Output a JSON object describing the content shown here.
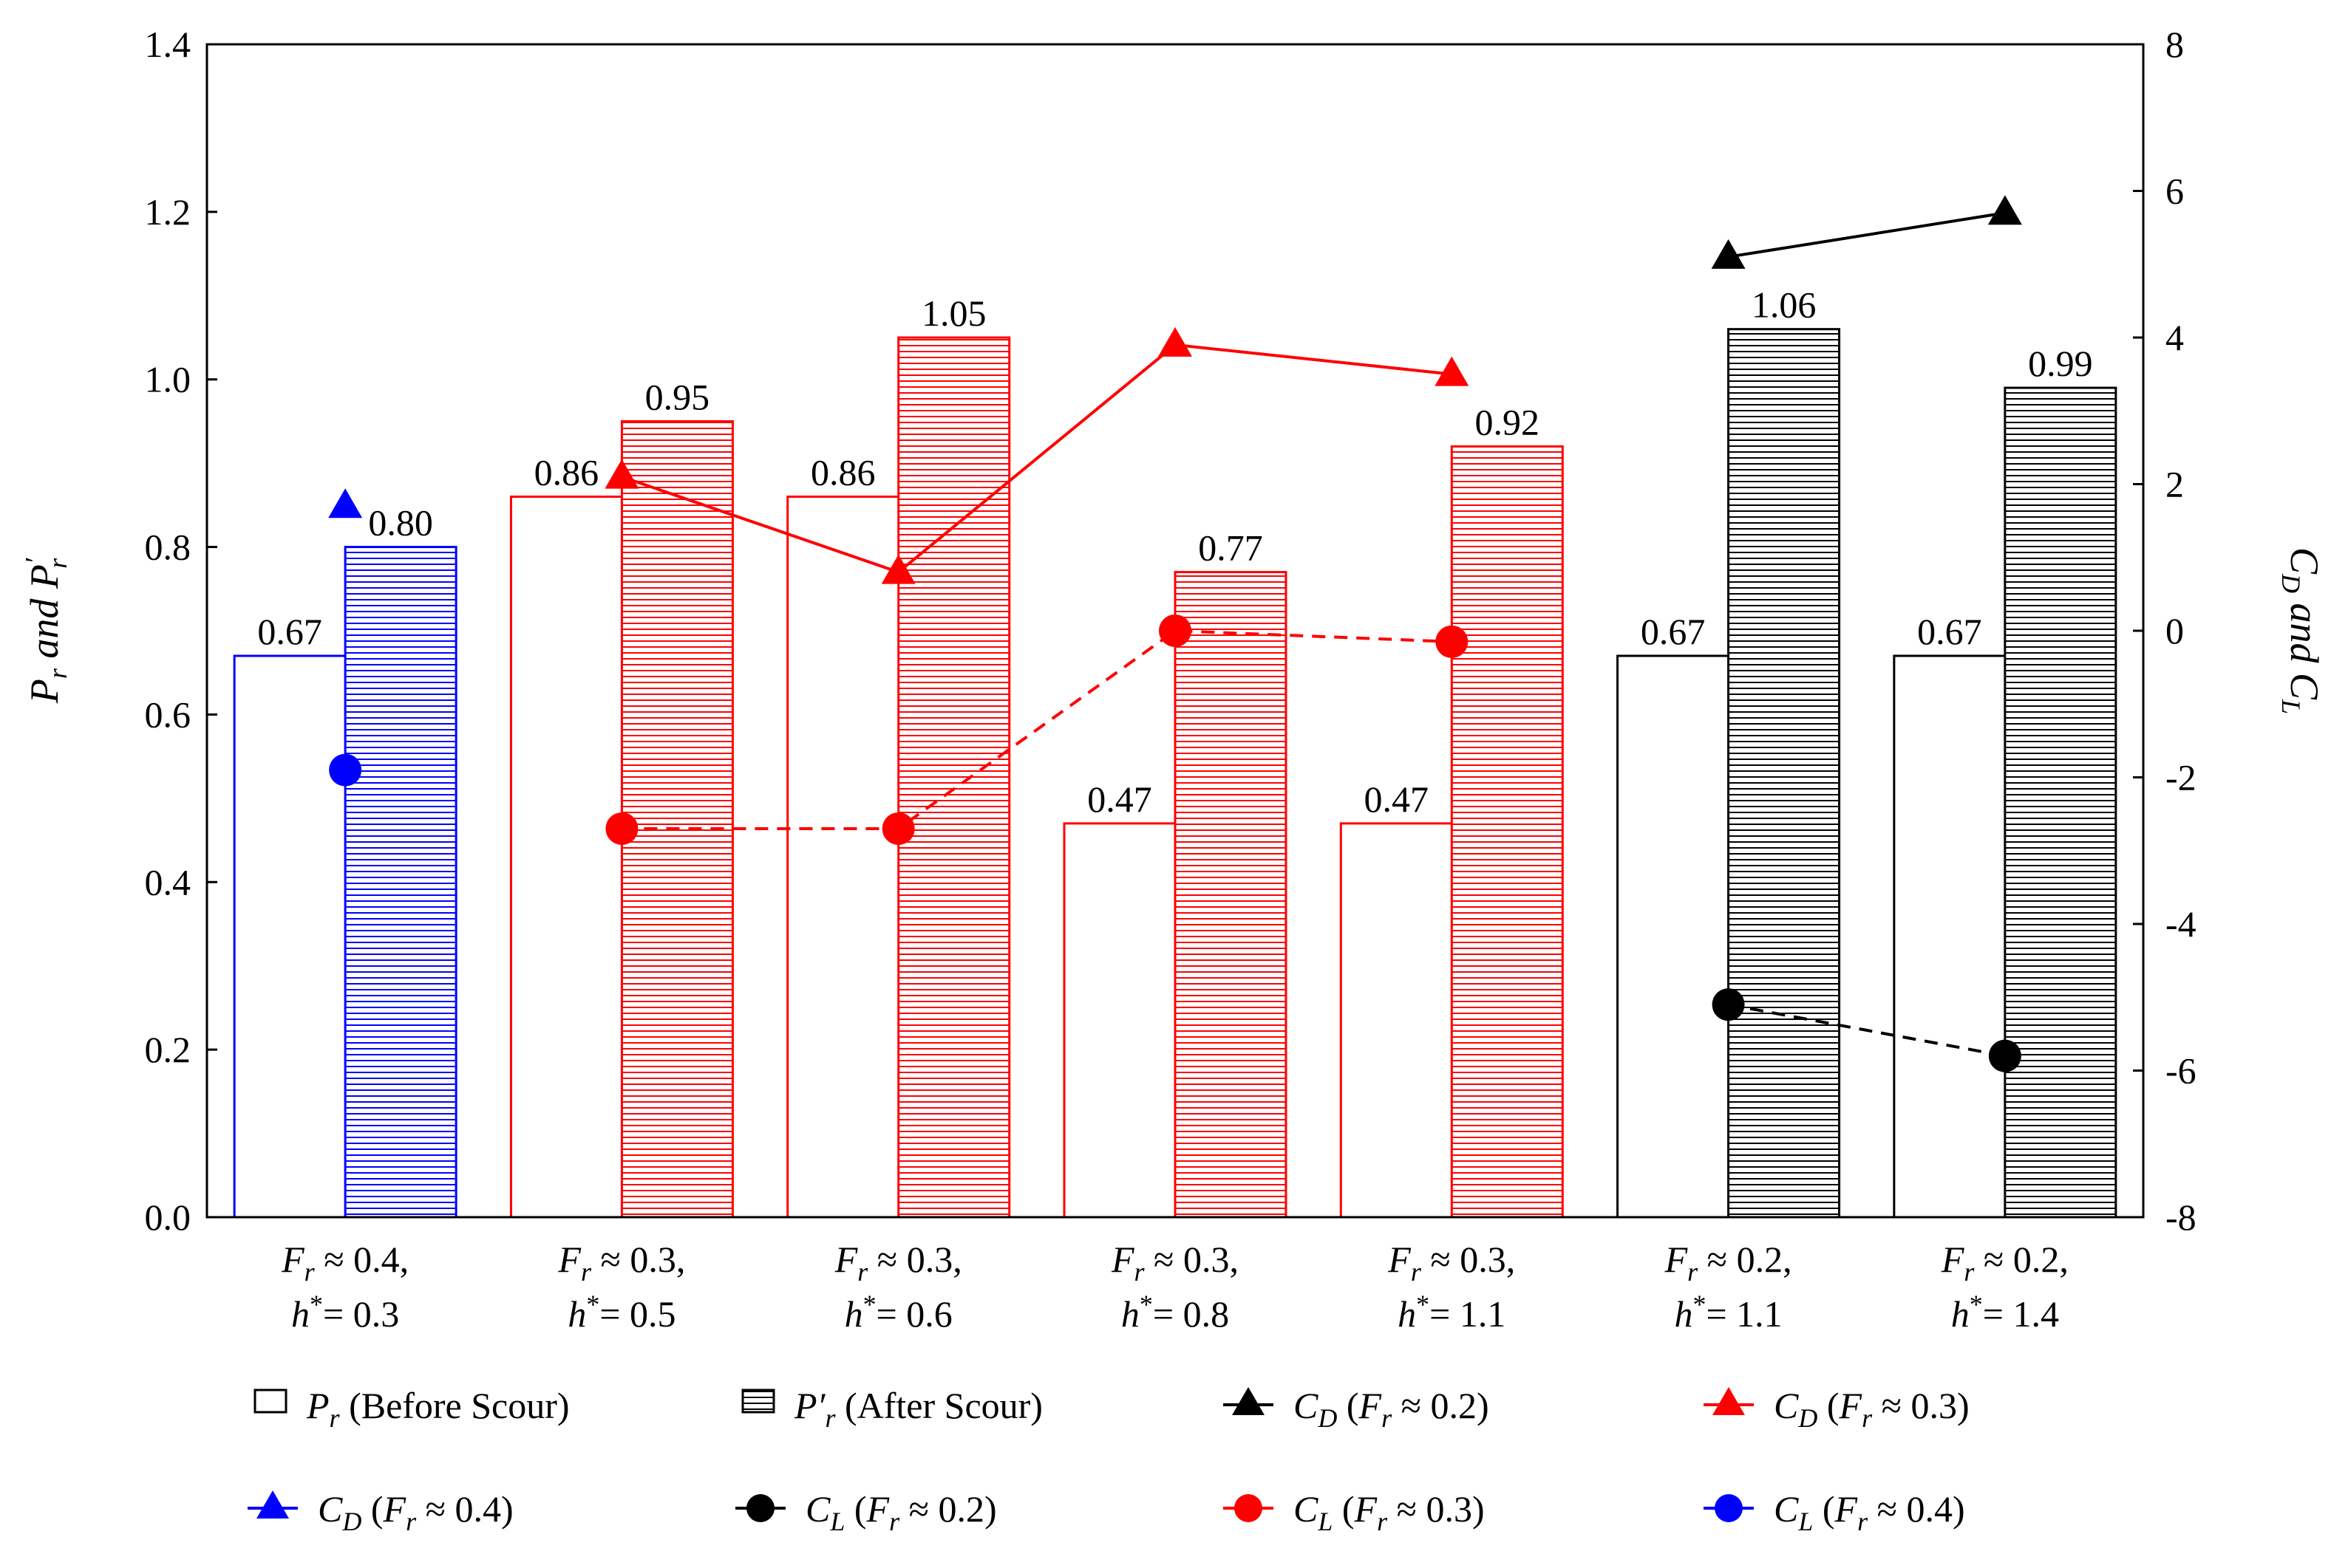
{
  "chart_data": {
    "type": "bar",
    "categories": [
      {
        "line1": "F_r ≈ 0.4,",
        "line2": "h*= 0.3",
        "fr": "0.4",
        "h": "0.3"
      },
      {
        "line1": "F_r ≈ 0.3,",
        "line2": "h*= 0.5",
        "fr": "0.3",
        "h": "0.5"
      },
      {
        "line1": "F_r ≈ 0.3,",
        "line2": "h*= 0.6",
        "fr": "0.3",
        "h": "0.6"
      },
      {
        "line1": "F_r ≈ 0.3,",
        "line2": "h*= 0.8",
        "fr": "0.3",
        "h": "0.8"
      },
      {
        "line1": "F_r ≈ 0.3,",
        "line2": "h*= 1.1",
        "fr": "0.3",
        "h": "1.1"
      },
      {
        "line1": "F_r ≈ 0.2,",
        "line2": "h*= 1.1",
        "fr": "0.2",
        "h": "1.1"
      },
      {
        "line1": "F_r ≈ 0.2,",
        "line2": "h*= 1.4",
        "fr": "0.2",
        "h": "1.4"
      }
    ],
    "bar_colors": [
      "#0000ff",
      "#ff0000",
      "#ff0000",
      "#ff0000",
      "#ff0000",
      "#000000",
      "#000000"
    ],
    "bar_series": [
      {
        "name": "P_r (Before Scour)",
        "values": [
          0.67,
          0.86,
          0.86,
          0.47,
          0.47,
          0.67,
          0.67
        ],
        "labels": [
          "0.67",
          "0.86",
          "0.86",
          "0.47",
          "0.47",
          "0.67",
          "0.67"
        ],
        "pattern": "open"
      },
      {
        "name": "P'_r (After Scour)",
        "values": [
          0.8,
          0.95,
          1.05,
          0.77,
          0.92,
          1.06,
          0.99
        ],
        "labels": [
          "0.80",
          "0.95",
          "1.05",
          "0.77",
          "0.92",
          "1.06",
          "0.99"
        ],
        "pattern": "hatched"
      }
    ],
    "line_series": [
      {
        "name": "C_D (F_r ≈ 0.2)",
        "coef": "D",
        "fr": "0.2",
        "color": "#000000",
        "marker": "triangle",
        "dash": false,
        "points": [
          [
            5,
            5.1
          ],
          [
            6,
            5.7
          ]
        ]
      },
      {
        "name": "C_D (F_r ≈ 0.3)",
        "coef": "D",
        "fr": "0.3",
        "color": "#ff0000",
        "marker": "triangle",
        "dash": false,
        "points": [
          [
            1,
            2.1
          ],
          [
            2,
            0.8
          ],
          [
            3,
            3.9
          ],
          [
            4,
            3.5
          ]
        ]
      },
      {
        "name": "C_D (F_r ≈ 0.4)",
        "coef": "D",
        "fr": "0.4",
        "color": "#0000ff",
        "marker": "triangle",
        "dash": false,
        "points": [
          [
            0,
            1.7
          ]
        ]
      },
      {
        "name": "C_L (F_r ≈ 0.2)",
        "coef": "L",
        "fr": "0.2",
        "color": "#000000",
        "marker": "circle",
        "dash": true,
        "points": [
          [
            5,
            -5.1
          ],
          [
            6,
            -5.8
          ]
        ]
      },
      {
        "name": "C_L (F_r ≈ 0.3)",
        "coef": "L",
        "fr": "0.3",
        "color": "#ff0000",
        "marker": "circle",
        "dash": true,
        "points": [
          [
            1,
            -2.7
          ],
          [
            2,
            -2.7
          ],
          [
            3,
            0.0
          ],
          [
            4,
            -0.15
          ]
        ]
      },
      {
        "name": "C_L (F_r ≈ 0.4)",
        "coef": "L",
        "fr": "0.4",
        "color": "#0000ff",
        "marker": "circle",
        "dash": false,
        "points": [
          [
            0,
            -1.9
          ]
        ]
      }
    ],
    "y_left": {
      "label": "P_r and P'_r",
      "range": [
        0.0,
        1.4
      ],
      "ticks": [
        "0.0",
        "0.2",
        "0.4",
        "0.6",
        "0.8",
        "1.0",
        "1.2",
        "1.4"
      ]
    },
    "y_right": {
      "label": "C_D and C_L",
      "range": [
        -8,
        8
      ],
      "ticks": [
        "-8",
        "-6",
        "-4",
        "-2",
        "0",
        "2",
        "4",
        "6",
        "8"
      ]
    },
    "grid": false,
    "legend": {
      "position": "bottom",
      "items": [
        {
          "kind": "bar-open",
          "symbol": "P",
          "sub": "r",
          "text": "(Before Scour)"
        },
        {
          "kind": "bar-hatch",
          "symbol": "P′",
          "sub": "r",
          "text": "(After Scour)"
        },
        {
          "kind": "line",
          "series": 0
        },
        {
          "kind": "line",
          "series": 1
        },
        {
          "kind": "line",
          "series": 2
        },
        {
          "kind": "line",
          "series": 3
        },
        {
          "kind": "line",
          "series": 4
        },
        {
          "kind": "line",
          "series": 5
        }
      ]
    }
  }
}
